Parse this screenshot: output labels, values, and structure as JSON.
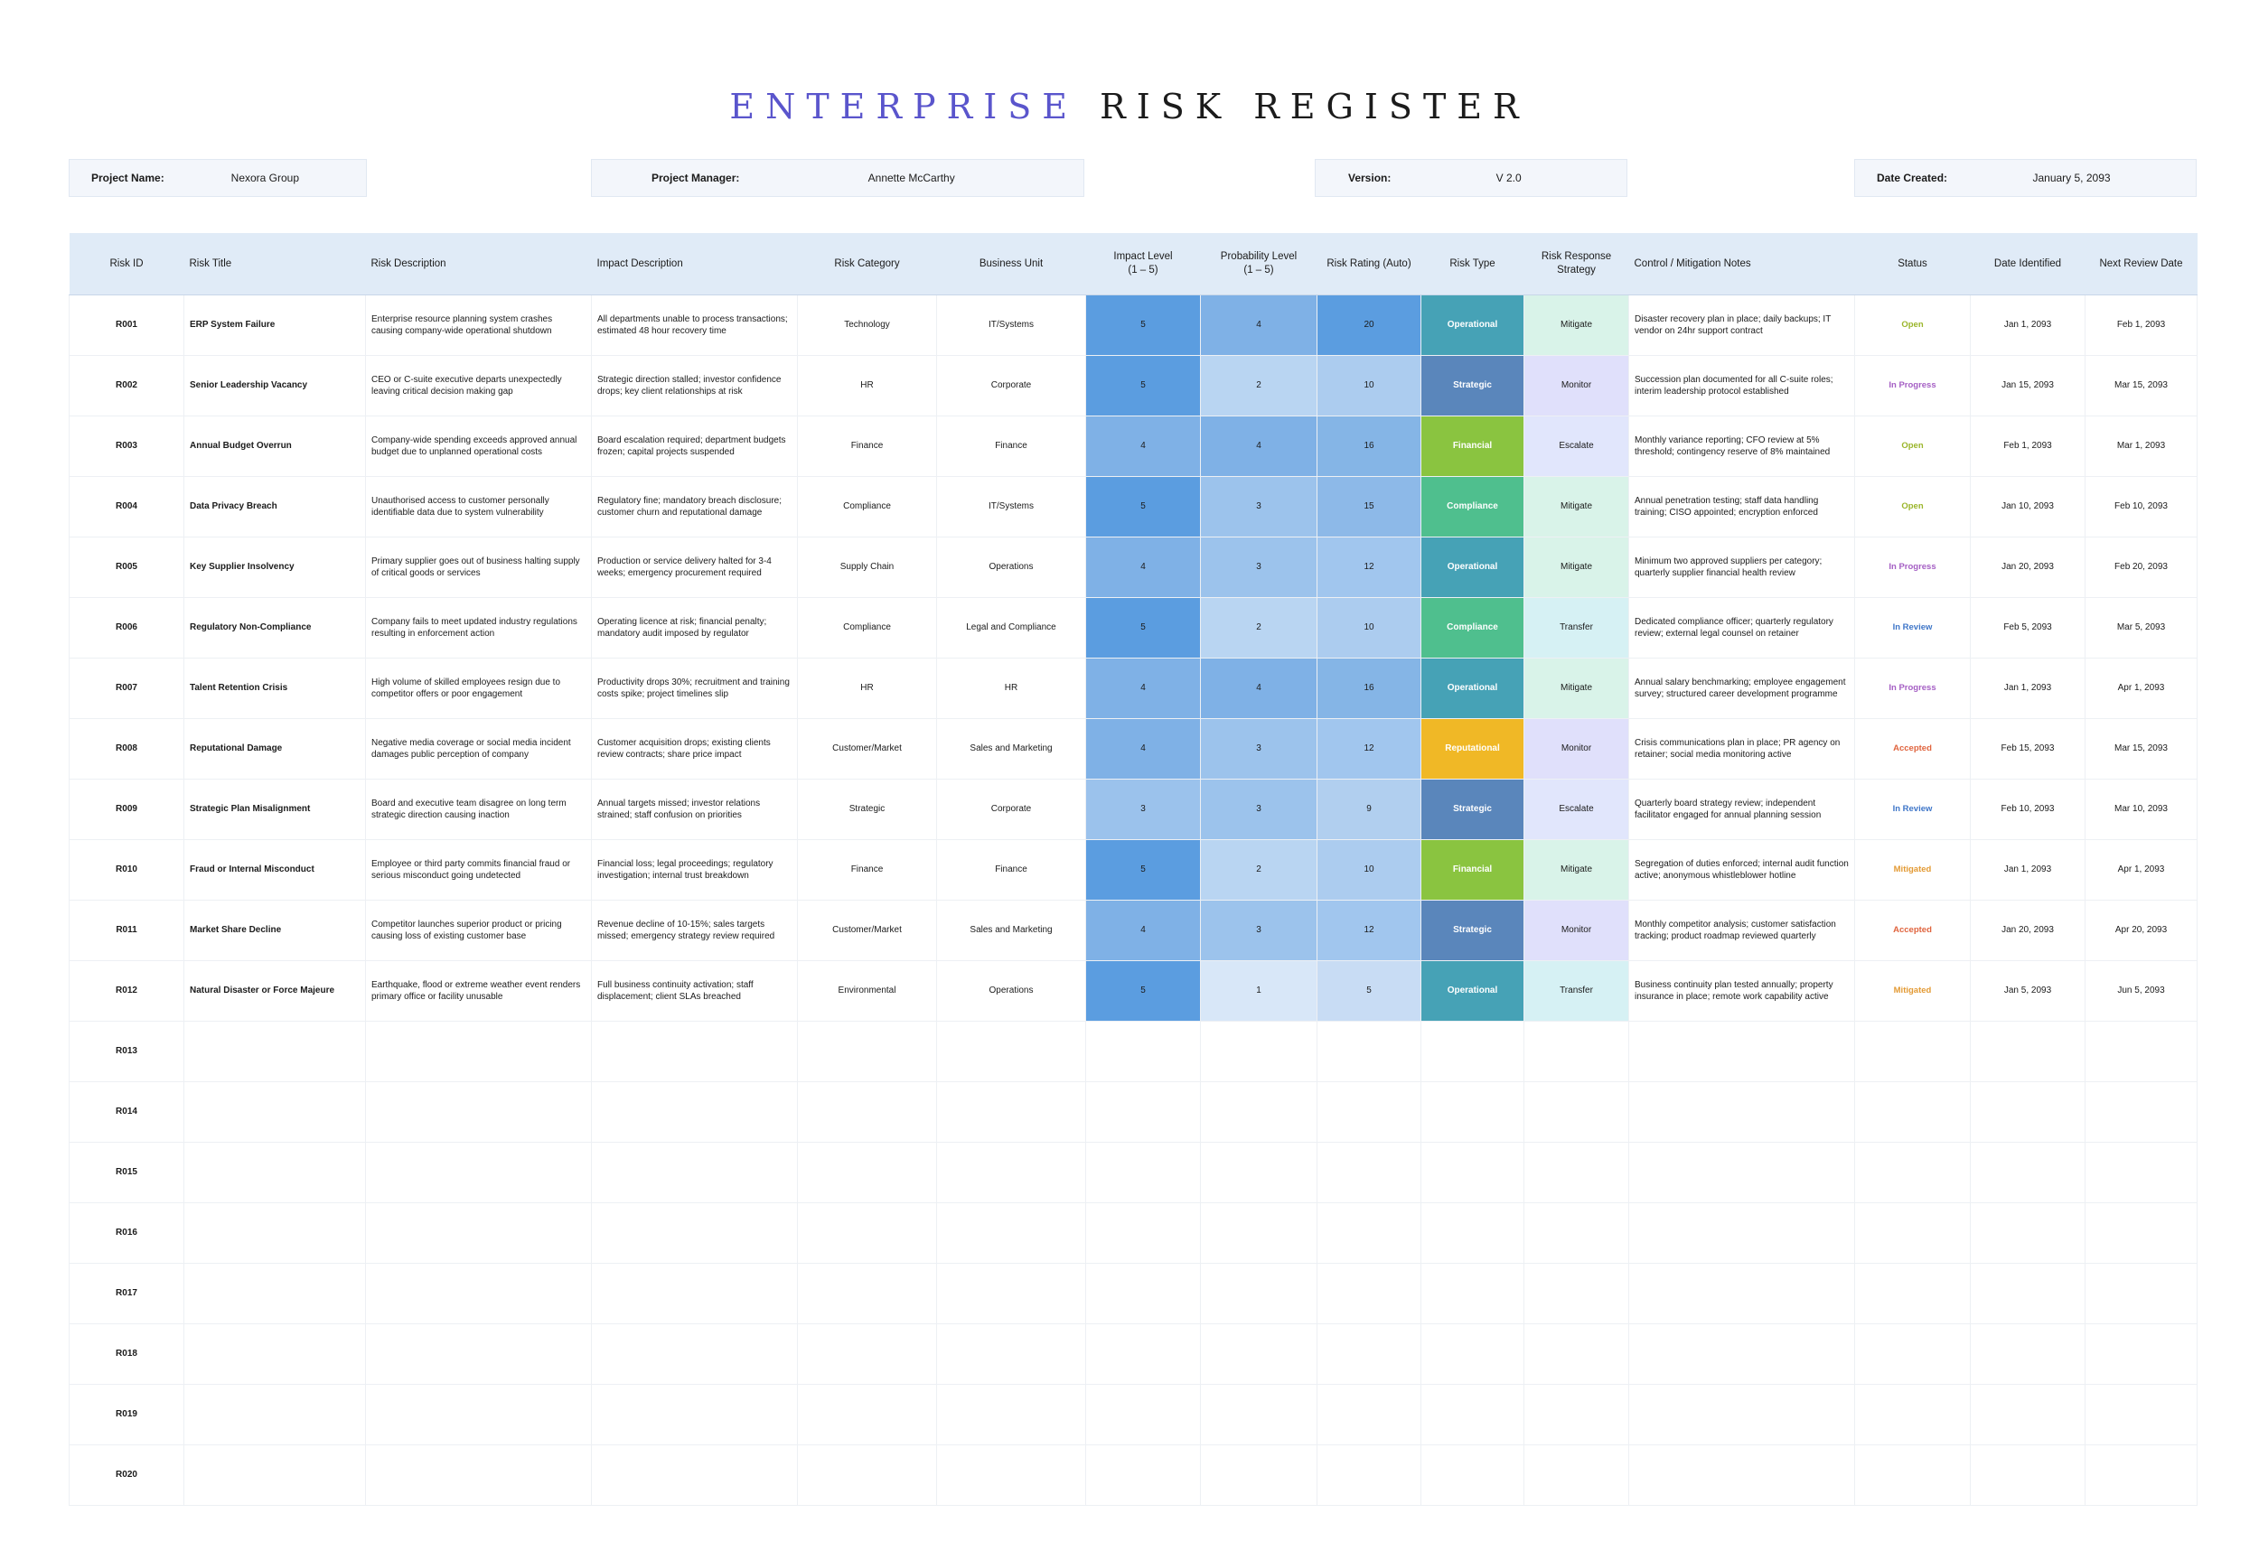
{
  "title": {
    "accent": "ENTERPRISE",
    "rest": "RISK REGISTER"
  },
  "meta": [
    {
      "label": "Project Name:",
      "value": "Nexora Group"
    },
    {
      "label": "Project Manager:",
      "value": "Annette McCarthy"
    },
    {
      "label": "Version:",
      "value": "V 2.0"
    },
    {
      "label": "Date Created:",
      "value": "January 5, 2093"
    }
  ],
  "columns": [
    "Risk ID",
    "Risk Title",
    "Risk Description",
    "Impact Description",
    "Risk Category",
    "Business Unit",
    "Impact Level\n(1 – 5)",
    "Probability Level\n(1 – 5)",
    "Risk Rating (Auto)",
    "Risk Type",
    "Risk Response\nStrategy",
    "Control / Mitigation Notes",
    "Status",
    "Date Identified",
    "Next Review Date"
  ],
  "colors": {
    "impact": {
      "5": "#5b9de0",
      "4": "#7fb1e6",
      "3": "#9bc2ec"
    },
    "probability": {
      "4": "#7fb1e6",
      "3": "#9cc3ec",
      "2": "#b9d5f2",
      "1": "#d8e7f8"
    },
    "rating": {
      "20": "#5b9de0",
      "16": "#85b5e6",
      "15": "#8db9e8",
      "12": "#a1c6ee",
      "10": "#acccef",
      "9": "#b1cfef",
      "5": "#c8dcf4"
    },
    "type": {
      "Operational": "#46a2b6",
      "Strategic": "#5a86bb",
      "Financial": "#8ac440",
      "Compliance": "#4fbf8e",
      "Reputational": "#f0b826"
    },
    "strategy": {
      "Mitigate": "#d9f3e9",
      "Monitor": "#e0e0fb",
      "Escalate": "#e1e6fc",
      "Transfer": "#d6f1f4"
    },
    "status": {
      "Open": "#9ab52a",
      "In Progress": "#a55fc4",
      "In Review": "#3f76c8",
      "Accepted": "#e0643e",
      "Mitigated": "#e39a34"
    }
  },
  "rows": [
    {
      "id": "R001",
      "title": "ERP System Failure",
      "description": "Enterprise resource planning system crashes causing company-wide operational shutdown",
      "impact_desc": "All departments unable to process transactions; estimated 48 hour recovery time",
      "category": "Technology",
      "unit": "IT/Systems",
      "impact": "5",
      "probability": "4",
      "rating": "20",
      "type": "Operational",
      "strategy": "Mitigate",
      "notes": "Disaster recovery plan in place; daily backups; IT vendor on 24hr support contract",
      "status": "Open",
      "identified": "Jan 1, 2093",
      "review": "Feb 1, 2093"
    },
    {
      "id": "R002",
      "title": "Senior Leadership Vacancy",
      "description": "CEO or C-suite executive departs unexpectedly leaving critical decision making gap",
      "impact_desc": "Strategic direction stalled; investor confidence drops; key client relationships at risk",
      "category": "HR",
      "unit": "Corporate",
      "impact": "5",
      "probability": "2",
      "rating": "10",
      "type": "Strategic",
      "strategy": "Monitor",
      "notes": "Succession plan documented for all C-suite roles; interim leadership protocol established",
      "status": "In Progress",
      "identified": "Jan 15, 2093",
      "review": "Mar 15, 2093"
    },
    {
      "id": "R003",
      "title": "Annual Budget Overrun",
      "description": "Company-wide spending exceeds approved annual budget due to unplanned operational costs",
      "impact_desc": "Board escalation required; department budgets frozen; capital projects suspended",
      "category": "Finance",
      "unit": "Finance",
      "impact": "4",
      "probability": "4",
      "rating": "16",
      "type": "Financial",
      "strategy": "Escalate",
      "notes": "Monthly variance reporting; CFO review at 5% threshold; contingency reserve of 8% maintained",
      "status": "Open",
      "identified": "Feb 1, 2093",
      "review": "Mar 1, 2093"
    },
    {
      "id": "R004",
      "title": "Data Privacy Breach",
      "description": "Unauthorised access to customer personally identifiable data due to system vulnerability",
      "impact_desc": "Regulatory fine; mandatory breach disclosure; customer churn and reputational damage",
      "category": "Compliance",
      "unit": "IT/Systems",
      "impact": "5",
      "probability": "3",
      "rating": "15",
      "type": "Compliance",
      "strategy": "Mitigate",
      "notes": "Annual penetration testing; staff data handling training; CISO appointed; encryption enforced",
      "status": "Open",
      "identified": "Jan 10, 2093",
      "review": "Feb 10, 2093"
    },
    {
      "id": "R005",
      "title": "Key Supplier Insolvency",
      "description": "Primary supplier goes out of business halting supply of critical goods or services",
      "impact_desc": "Production or service delivery halted for 3-4 weeks; emergency procurement required",
      "category": "Supply Chain",
      "unit": "Operations",
      "impact": "4",
      "probability": "3",
      "rating": "12",
      "type": "Operational",
      "strategy": "Mitigate",
      "notes": "Minimum two approved suppliers per category; quarterly supplier financial health review",
      "status": "In Progress",
      "identified": "Jan 20, 2093",
      "review": "Feb 20, 2093"
    },
    {
      "id": "R006",
      "title": "Regulatory Non-Compliance",
      "description": "Company fails to meet updated industry regulations resulting in enforcement action",
      "impact_desc": "Operating licence at risk; financial penalty; mandatory audit imposed by regulator",
      "category": "Compliance",
      "unit": "Legal and Compliance",
      "impact": "5",
      "probability": "2",
      "rating": "10",
      "type": "Compliance",
      "strategy": "Transfer",
      "notes": "Dedicated compliance officer; quarterly regulatory review; external legal counsel on retainer",
      "status": "In Review",
      "identified": "Feb 5, 2093",
      "review": "Mar 5, 2093"
    },
    {
      "id": "R007",
      "title": "Talent Retention Crisis",
      "description": "High volume of skilled employees resign due to competitor offers or poor engagement",
      "impact_desc": "Productivity drops 30%; recruitment and training costs spike; project timelines slip",
      "category": "HR",
      "unit": "HR",
      "impact": "4",
      "probability": "4",
      "rating": "16",
      "type": "Operational",
      "strategy": "Mitigate",
      "notes": "Annual salary benchmarking; employee engagement survey; structured career development programme",
      "status": "In Progress",
      "identified": "Jan 1, 2093",
      "review": "Apr 1, 2093"
    },
    {
      "id": "R008",
      "title": "Reputational Damage",
      "description": "Negative media coverage or social media incident damages public perception of company",
      "impact_desc": "Customer acquisition drops; existing clients review contracts; share price impact",
      "category": "Customer/Market",
      "unit": "Sales and Marketing",
      "impact": "4",
      "probability": "3",
      "rating": "12",
      "type": "Reputational",
      "strategy": "Monitor",
      "notes": "Crisis communications plan in place; PR agency on retainer; social media monitoring active",
      "status": "Accepted",
      "identified": "Feb 15, 2093",
      "review": "Mar 15, 2093"
    },
    {
      "id": "R009",
      "title": "Strategic Plan Misalignment",
      "description": "Board and executive team disagree on long term strategic direction causing inaction",
      "impact_desc": "Annual targets missed; investor relations strained; staff confusion on priorities",
      "category": "Strategic",
      "unit": "Corporate",
      "impact": "3",
      "probability": "3",
      "rating": "9",
      "type": "Strategic",
      "strategy": "Escalate",
      "notes": "Quarterly board strategy review; independent facilitator engaged for annual planning session",
      "status": "In Review",
      "identified": "Feb 10, 2093",
      "review": "Mar 10, 2093"
    },
    {
      "id": "R010",
      "title": "Fraud or Internal Misconduct",
      "description": "Employee or third party commits financial fraud or serious misconduct going undetected",
      "impact_desc": "Financial loss; legal proceedings; regulatory investigation; internal trust breakdown",
      "category": "Finance",
      "unit": "Finance",
      "impact": "5",
      "probability": "2",
      "rating": "10",
      "type": "Financial",
      "strategy": "Mitigate",
      "notes": "Segregation of duties enforced; internal audit function active; anonymous whistleblower hotline",
      "status": "Mitigated",
      "identified": "Jan 1, 2093",
      "review": "Apr 1, 2093"
    },
    {
      "id": "R011",
      "title": "Market Share Decline",
      "description": "Competitor launches superior product or pricing causing loss of existing customer base",
      "impact_desc": "Revenue decline of 10-15%; sales targets missed; emergency strategy review required",
      "category": "Customer/Market",
      "unit": "Sales and Marketing",
      "impact": "4",
      "probability": "3",
      "rating": "12",
      "type": "Strategic",
      "strategy": "Monitor",
      "notes": "Monthly competitor analysis; customer satisfaction tracking; product roadmap reviewed quarterly",
      "status": "Accepted",
      "identified": "Jan 20, 2093",
      "review": "Apr 20, 2093"
    },
    {
      "id": "R012",
      "title": "Natural Disaster or Force Majeure",
      "description": "Earthquake, flood or extreme weather event renders primary office or facility unusable",
      "impact_desc": "Full business continuity activation; staff displacement; client SLAs breached",
      "category": "Environmental",
      "unit": "Operations",
      "impact": "5",
      "probability": "1",
      "rating": "5",
      "type": "Operational",
      "strategy": "Transfer",
      "notes": "Business continuity plan tested annually; property insurance in place; remote work capability active",
      "status": "Mitigated",
      "identified": "Jan 5, 2093",
      "review": "Jun 5, 2093"
    },
    {
      "id": "R013"
    },
    {
      "id": "R014"
    },
    {
      "id": "R015"
    },
    {
      "id": "R016"
    },
    {
      "id": "R017"
    },
    {
      "id": "R018"
    },
    {
      "id": "R019"
    },
    {
      "id": "R020"
    }
  ]
}
